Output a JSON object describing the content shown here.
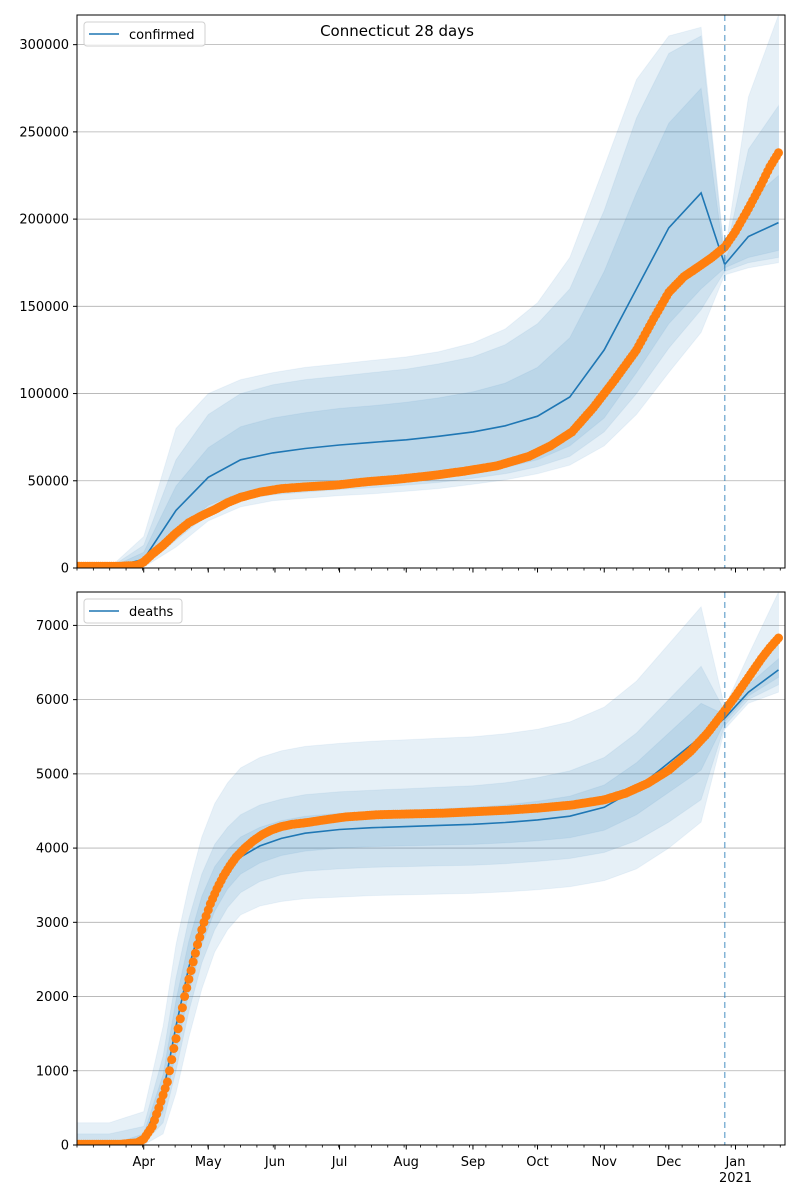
{
  "chart_data": [
    {
      "type": "line",
      "title": "Connecticut 28 days",
      "legend": {
        "label": "confirmed",
        "placement": "top-left"
      },
      "xlabel": "",
      "ylabel": "",
      "ylim": [
        0,
        317000
      ],
      "yticks": [
        0,
        50000,
        100000,
        150000,
        200000,
        250000,
        300000
      ],
      "ytick_labels": [
        "0",
        "50000",
        "100000",
        "150000",
        "200000",
        "250000",
        "300000"
      ],
      "grid": "horizontal",
      "forecast_split_day": 301,
      "x_days": [
        0,
        15,
        31,
        46,
        61,
        76,
        91,
        106,
        122,
        137,
        153,
        168,
        184,
        199,
        214,
        229,
        245,
        260,
        275,
        290,
        301,
        312,
        326
      ],
      "model": {
        "median": [
          0,
          0,
          5000,
          33000,
          52000,
          62000,
          66000,
          68500,
          70500,
          72000,
          73500,
          75500,
          78000,
          81500,
          87000,
          98000,
          125000,
          160000,
          195000,
          215000,
          174000,
          190000,
          198000
        ],
        "bands": [
          {
            "lower": [
              0,
              0,
              1500,
              20000,
              36000,
              43000,
              45500,
              47000,
              48500,
              49500,
              51000,
              52500,
              55000,
              57500,
              62000,
              70000,
              86000,
              112000,
              140000,
              160000,
              172000,
              178000,
              182000
            ],
            "upper": [
              0,
              0,
              9000,
              47000,
              69000,
              81000,
              86000,
              89000,
              91500,
              93000,
              95000,
              97500,
              101000,
              106000,
              115000,
              132000,
              170000,
              215000,
              255000,
              275000,
              176000,
              210000,
              225000
            ]
          },
          {
            "lower": [
              0,
              0,
              800,
              16000,
              31000,
              39000,
              42000,
              43500,
              45000,
              46000,
              47500,
              49000,
              51500,
              54000,
              58000,
              64000,
              78000,
              100000,
              126000,
              148000,
              170000,
              175000,
              178000
            ],
            "upper": [
              0,
              0,
              13000,
              62000,
              88000,
              100000,
              105000,
              108000,
              110000,
              112000,
              114000,
              117000,
              121000,
              128000,
              140000,
              160000,
              205000,
              258000,
              295000,
              305000,
              178000,
              240000,
              265000
            ]
          },
          {
            "lower": [
              0,
              0,
              400,
              12000,
              27000,
              35000,
              38500,
              40000,
              41500,
              42500,
              44000,
              45500,
              48000,
              50500,
              54000,
              59000,
              70000,
              88000,
              112000,
              135000,
              168000,
              172000,
              175000
            ],
            "upper": [
              0,
              0,
              18000,
              80000,
              100000,
              108000,
              112000,
              115000,
              117000,
              119000,
              121000,
              124000,
              129000,
              137000,
              152000,
              178000,
              230000,
              280000,
              305000,
              310000,
              180000,
              270000,
              317000
            ]
          }
        ]
      },
      "observed": {
        "x_days": [
          0,
          10,
          20,
          28,
          31,
          35,
          40,
          46,
          52,
          58,
          64,
          70,
          76,
          85,
          95,
          106,
          120,
          135,
          150,
          165,
          180,
          195,
          210,
          220,
          230,
          240,
          250,
          260,
          268,
          275,
          282,
          288,
          295,
          301,
          306,
          312,
          318,
          322,
          326
        ],
        "values": [
          1000,
          1000,
          1000,
          1500,
          3500,
          8000,
          13000,
          20000,
          26000,
          30000,
          33500,
          37500,
          40500,
          43500,
          45500,
          46500,
          47500,
          49500,
          51000,
          53000,
          55500,
          58500,
          64000,
          70000,
          78000,
          92000,
          108000,
          125000,
          143000,
          158000,
          167000,
          172000,
          178000,
          184000,
          193000,
          206000,
          220000,
          230000,
          238000
        ]
      }
    },
    {
      "type": "line",
      "title": "",
      "legend": {
        "label": "deaths",
        "placement": "top-left"
      },
      "xlabel": "",
      "ylabel": "",
      "ylim": [
        0,
        7450
      ],
      "yticks": [
        0,
        1000,
        2000,
        3000,
        4000,
        5000,
        6000,
        7000
      ],
      "ytick_labels": [
        "0",
        "1000",
        "2000",
        "3000",
        "4000",
        "5000",
        "6000",
        "7000"
      ],
      "grid": "horizontal",
      "forecast_split_day": 301,
      "x_days": [
        0,
        15,
        31,
        40,
        46,
        52,
        58,
        64,
        70,
        76,
        85,
        95,
        106,
        122,
        137,
        153,
        168,
        184,
        199,
        214,
        229,
        245,
        260,
        275,
        290,
        301,
        312,
        326
      ],
      "model": {
        "median": [
          0,
          0,
          100,
          700,
          1600,
          2400,
          3000,
          3450,
          3700,
          3880,
          4030,
          4130,
          4200,
          4250,
          4275,
          4290,
          4305,
          4320,
          4345,
          4380,
          4430,
          4550,
          4800,
          5150,
          5500,
          5750,
          6100,
          6400
        ],
        "bands": [
          {
            "lower": [
              0,
              0,
              50,
              450,
              1250,
              2050,
              2700,
              3150,
              3450,
              3650,
              3800,
              3900,
              3960,
              4000,
              4020,
              4030,
              4040,
              4050,
              4070,
              4100,
              4140,
              4240,
              4450,
              4750,
              5050,
              5700,
              6050,
              6300
            ],
            "upper": [
              0,
              0,
              150,
              950,
              1950,
              2750,
              3350,
              3750,
              3980,
              4150,
              4280,
              4370,
              4430,
              4470,
              4490,
              4510,
              4530,
              4550,
              4580,
              4630,
              4700,
              4850,
              5150,
              5550,
              5950,
              5800,
              6200,
              6550
            ]
          },
          {
            "lower": [
              0,
              0,
              20,
              300,
              1000,
              1800,
              2450,
              2900,
              3200,
              3400,
              3550,
              3640,
              3690,
              3720,
              3740,
              3750,
              3760,
              3770,
              3790,
              3820,
              3860,
              3940,
              4100,
              4350,
              4650,
              5650,
              6000,
              6200
            ],
            "upper": [
              150,
              150,
              250,
              1200,
              2250,
              3050,
              3650,
              4050,
              4280,
              4450,
              4580,
              4660,
              4720,
              4760,
              4780,
              4800,
              4820,
              4840,
              4880,
              4950,
              5040,
              5220,
              5550,
              6000,
              6450,
              5850,
              6350,
              6800
            ]
          },
          {
            "lower": [
              0,
              0,
              0,
              150,
              700,
              1450,
              2100,
              2600,
              2900,
              3100,
              3220,
              3280,
              3320,
              3340,
              3360,
              3370,
              3380,
              3390,
              3410,
              3440,
              3480,
              3560,
              3720,
              4000,
              4350,
              5600,
              5950,
              6100
            ],
            "upper": [
              300,
              300,
              450,
              1600,
              2700,
              3500,
              4150,
              4600,
              4880,
              5080,
              5220,
              5310,
              5370,
              5410,
              5440,
              5460,
              5480,
              5500,
              5540,
              5600,
              5700,
              5900,
              6250,
              6750,
              7250,
              5900,
              6600,
              7450
            ]
          }
        ]
      },
      "observed": {
        "x_days": [
          0,
          10,
          20,
          28,
          31,
          35,
          38,
          42,
          45,
          48,
          50,
          53,
          56,
          59,
          62,
          65,
          68,
          71,
          74,
          78,
          82,
          86,
          90,
          95,
          100,
          106,
          115,
          125,
          140,
          155,
          170,
          185,
          200,
          215,
          230,
          245,
          255,
          265,
          275,
          285,
          293,
          301,
          306,
          312,
          318,
          322,
          326
        ],
        "values": [
          10,
          10,
          10,
          30,
          80,
          250,
          500,
          850,
          1300,
          1700,
          2000,
          2350,
          2700,
          3000,
          3250,
          3450,
          3620,
          3760,
          3880,
          4000,
          4100,
          4180,
          4240,
          4290,
          4320,
          4340,
          4380,
          4420,
          4450,
          4460,
          4470,
          4490,
          4510,
          4540,
          4580,
          4650,
          4740,
          4870,
          5050,
          5300,
          5550,
          5850,
          6050,
          6300,
          6550,
          6700,
          6830
        ]
      }
    }
  ],
  "x_axis": {
    "start_date": "2020-03-01",
    "month_ticks": [
      {
        "label": "Apr",
        "day": 31
      },
      {
        "label": "May",
        "day": 61
      },
      {
        "label": "Jun",
        "day": 92
      },
      {
        "label": "Jul",
        "day": 122
      },
      {
        "label": "Aug",
        "day": 153
      },
      {
        "label": "Sep",
        "day": 184
      },
      {
        "label": "Oct",
        "day": 214
      },
      {
        "label": "Nov",
        "day": 245
      },
      {
        "label": "Dec",
        "day": 275
      },
      {
        "label": "Jan",
        "day": 306,
        "sublabel": "2021"
      }
    ],
    "xlim_days": [
      0,
      329
    ]
  },
  "colors": {
    "model": "#1f77b4",
    "observed": "#ff7f0e",
    "grid": "#b0b0b0",
    "band_fill": "#1f77b4",
    "forecast_line": "#1f77b4"
  }
}
